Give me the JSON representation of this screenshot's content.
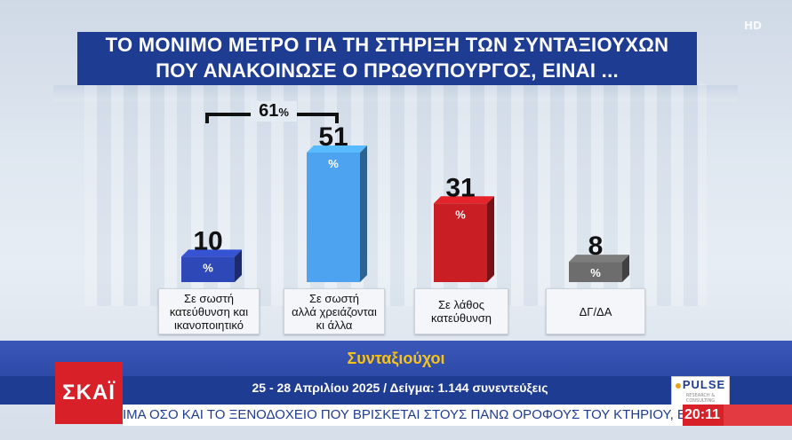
{
  "title": {
    "line1": "ΤΟ ΜΟΝΙΜΟ ΜΕΤΡΟ ΓΙΑ ΤΗ ΣΤΗΡΙΞΗ ΤΩΝ ΣΥΝΤΑΞΙΟΥΧΩΝ",
    "line2": "ΠΟΥ ΑΝΑΚΟΙΝΩΣΕ Ο ΠΡΩΘΥΠΟΥΡΓΟΣ, ΕΙΝΑΙ ..."
  },
  "hd_badge": "HD",
  "bracket": {
    "value": "61",
    "unit": "%"
  },
  "chart_data": {
    "type": "bar",
    "categories": [
      "Σε σωστή κατεύθυνση και ικανοποιητικό",
      "Σε σωστή αλλά χρειάζονται κι άλλα",
      "Σε λάθος κατεύθυνση",
      "ΔΓ/ΔΑ"
    ],
    "category_lines": [
      [
        "Σε σωστή",
        "κατεύθυνση και",
        "ικανοποιητικό"
      ],
      [
        "Σε σωστή",
        "αλλά χρειάζονται",
        "κι άλλα"
      ],
      [
        "Σε λάθος",
        "κατεύθυνση"
      ],
      [
        "ΔΓ/ΔΑ"
      ]
    ],
    "values": [
      10,
      51,
      31,
      8
    ],
    "value_unit": "%",
    "colors": [
      "#2f48b8",
      "#4da3f0",
      "#c81e24",
      "#6d6d6d"
    ],
    "ylim": [
      0,
      51
    ]
  },
  "subtitle": "Συνταξιούχοι",
  "source": "25 - 28 Απριλίου 2025 / Δείγμα: 1.144 συνεντεύξεις",
  "pulse_logo": {
    "name": "PULSE",
    "tagline": "RESEARCH & CONSULTING"
  },
  "channel_logo": "ΣΚΑΪ",
  "ticker": "ΙΜΑ ΟΣΟ ΚΑΙ ΤΟ ΞΕΝΟΔΟΧΕΙΟ ΠΟΥ ΒΡΙΣΚΕΤΑΙ ΣΤΟΥΣ ΠΑΝΩ ΟΡΟΦΟΥΣ ΤΟΥ ΚΤΗΡΙΟΥ, ΕΚΚΕΝ",
  "clock": "20:11"
}
